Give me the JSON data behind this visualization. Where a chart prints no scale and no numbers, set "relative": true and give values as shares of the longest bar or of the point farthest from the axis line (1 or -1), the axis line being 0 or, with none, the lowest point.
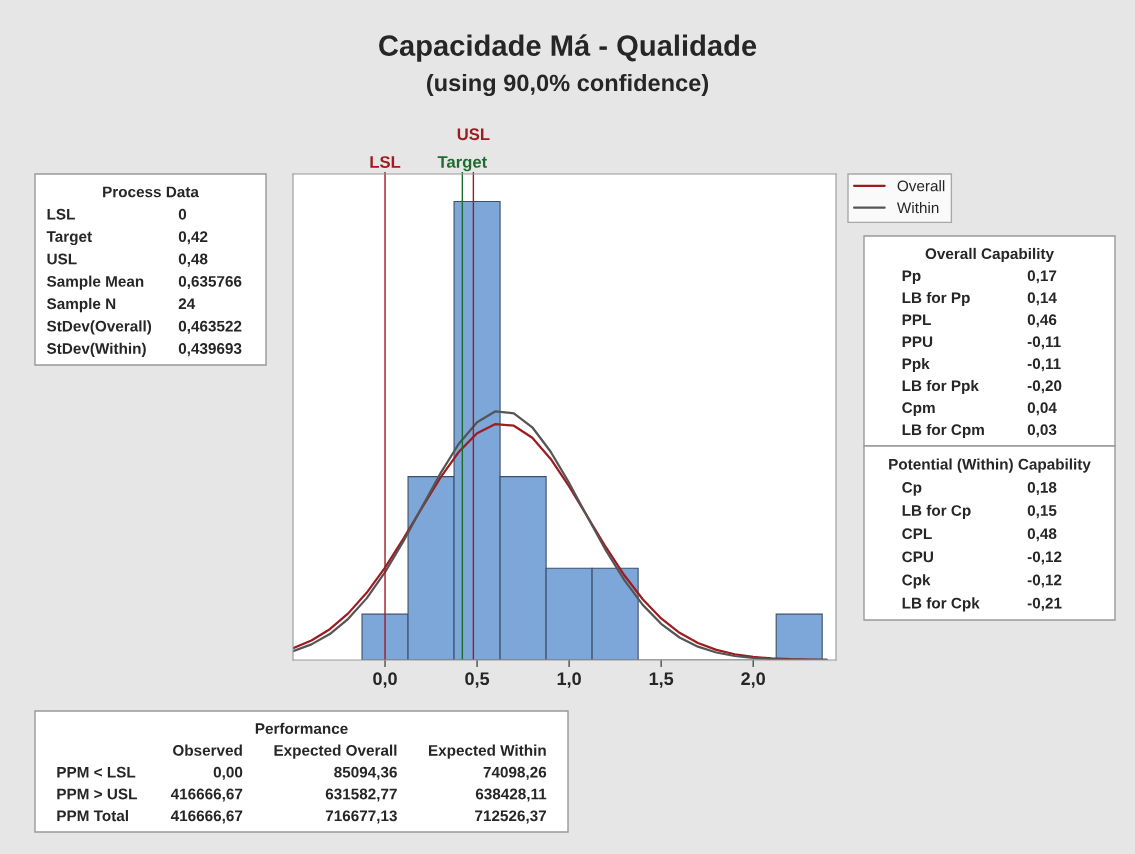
{
  "chart_data": {
    "type": "histogram",
    "title": "Capacidade Má - Qualidade",
    "subtitle": "(using 90,0% confidence)",
    "relative": true,
    "bins": [
      -0.125,
      0.125,
      0.375,
      0.625,
      0.875,
      1.125,
      1.375,
      1.625,
      1.875,
      2.125,
      2.375
    ],
    "values": [
      0.1,
      0.4,
      1,
      0.4,
      0.2,
      0.2,
      0,
      0,
      0,
      0.1
    ],
    "color": "#7da7d9",
    "xlim": [
      -0.5,
      2.45
    ],
    "xticks": [
      {
        "value": 0,
        "label": "0,0"
      },
      {
        "value": 0.5,
        "label": "0,5"
      },
      {
        "value": 1,
        "label": "1,0"
      },
      {
        "value": 1.5,
        "label": "1,5"
      },
      {
        "value": 2,
        "label": "2,0"
      }
    ],
    "series": [
      {
        "name": "Overall",
        "type": "line",
        "color": "#9e1b20",
        "x": [
          -0.5,
          -0.4,
          -0.3,
          -0.2,
          -0.1,
          0,
          0.1,
          0.2,
          0.3,
          0.4,
          0.5,
          0.6,
          0.7,
          0.8,
          0.9,
          1,
          1.1,
          1.2,
          1.3,
          1.4,
          1.5,
          1.6,
          1.7,
          1.8,
          1.9,
          2,
          2.1,
          2.2,
          2.3,
          2.4
        ],
        "values": [
          0.0257,
          0.0425,
          0.0672,
          0.1017,
          0.1466,
          0.2014,
          0.2646,
          0.3317,
          0.397,
          0.4535,
          0.4944,
          0.5145,
          0.511,
          0.4847,
          0.4385,
          0.3788,
          0.3124,
          0.246,
          0.1848,
          0.1326,
          0.0907,
          0.0594,
          0.037,
          0.022,
          0.0125,
          0.0068,
          0.0035,
          0.0017,
          0.0008,
          0.0004
        ]
      },
      {
        "name": "Within",
        "type": "line",
        "color": "#555555",
        "x": [
          -0.5,
          -0.4,
          -0.3,
          -0.2,
          -0.1,
          0,
          0.1,
          0.2,
          0.3,
          0.4,
          0.5,
          0.6,
          0.7,
          0.8,
          0.9,
          1,
          1.1,
          1.2,
          1.3,
          1.4,
          1.5,
          1.6,
          1.7,
          1.8,
          1.9,
          2,
          2.1,
          2.2,
          2.3,
          2.4
        ],
        "values": [
          0.0194,
          0.0341,
          0.0566,
          0.0898,
          0.1344,
          0.1915,
          0.259,
          0.333,
          0.4064,
          0.4711,
          0.5184,
          0.5424,
          0.538,
          0.5076,
          0.4542,
          0.3862,
          0.3117,
          0.2388,
          0.1741,
          0.1202,
          0.0789,
          0.0491,
          0.0291,
          0.0164,
          0.0087,
          0.0044,
          0.0021,
          0.001,
          0.0004,
          0.0002
        ]
      }
    ],
    "ref_lines": [
      {
        "axis": "x",
        "value": 0,
        "label": "LSL",
        "color": "#9e1b20"
      },
      {
        "axis": "x",
        "value": 0.42,
        "label": "Target",
        "color": "#1e6b2e"
      },
      {
        "axis": "x",
        "value": 0.48,
        "label": "USL",
        "color": "#9e1b20"
      }
    ],
    "legend": "right",
    "grid": false,
    "annotations": [
      "Process Data\nLSL\t0\nTarget\t0,42\nUSL\t0,48\nSample Mean\t0,635766\nSample N\t24\nStDev(Overall)\t0,463522\nStDev(Within)\t0,439693",
      "Overall Capability\nPp\t0,17\nLB for Pp\t0,14\nPPL\t0,46\nPPU\t-0,11\nPpk\t-0,11\nLB for Ppk\t-0,20\nCpm\t0,04\nLB for Cpm\t0,03",
      "Potential (Within) Capability\nCp\t0,18\nLB for Cp\t0,15\nCPL\t0,48\nCPU\t-0,12\nCpk\t-0,12\nLB for Cpk\t-0,21",
      "Performance\n\tObserved\tExpected Overall\tExpected Within\nPPM < LSL\t0,00\t85094,36\t74098,26\nPPM > USL\t416666,67\t631582,77\t638428,11\nPPM Total\t416666,67\t716677,13\t712526,37"
    ]
  }
}
